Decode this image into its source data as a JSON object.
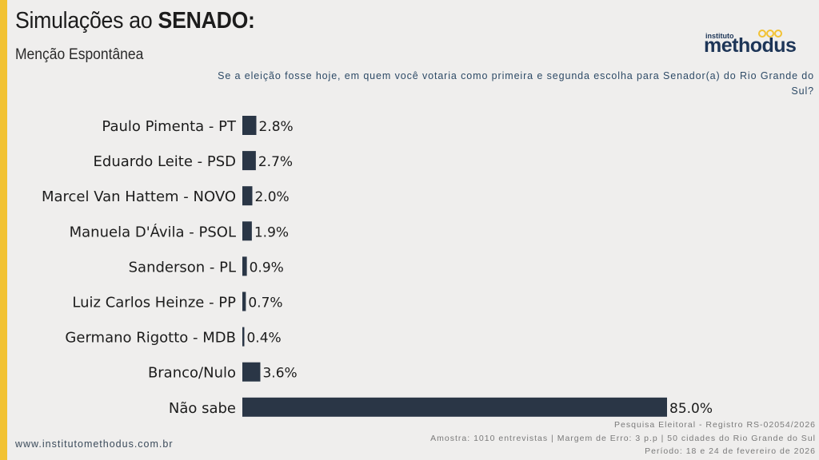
{
  "header": {
    "title_regular": "Simulações ao ",
    "title_bold": "SENADO:",
    "subtitle": "Menção Espontânea"
  },
  "logo": {
    "small": "instituto",
    "big": "methodus"
  },
  "question": "Se a eleição fosse hoje, em quem você votaria como primeira e segunda escolha para Senador(a) do Rio Grande do Sul?",
  "footer": {
    "url": "www.institutomethodus.com.br",
    "notes": [
      "Pesquisa Eleitoral - Registro RS-02054/2026",
      "Amostra: 1010 entrevistas | Margem de Erro: 3 p.p | 50 cidades do Rio Grande do Sul",
      "Período: 18 e 24 de fevereiro de 2026"
    ]
  },
  "colors": {
    "accent": "#f2c233",
    "bar": "#2a3646",
    "text": "#1c1c1c",
    "question": "#2d4a66"
  },
  "chart_data": {
    "type": "bar",
    "orientation": "horizontal",
    "title": "Simulações ao SENADO: Menção Espontânea",
    "xlabel": "",
    "ylabel": "",
    "xlim": [
      0,
      100
    ],
    "grid": false,
    "legend": "none",
    "value_suffix": "%",
    "categories": [
      "Paulo Pimenta - PT",
      "Eduardo Leite - PSD",
      "Marcel Van Hattem - NOVO",
      "Manuela D'Ávila - PSOL",
      "Sanderson - PL",
      "Luiz Carlos Heinze - PP",
      "Germano Rigotto - MDB",
      "Branco/Nulo",
      "Não sabe"
    ],
    "values": [
      2.8,
      2.7,
      2.0,
      1.9,
      0.9,
      0.7,
      0.4,
      3.6,
      85.0
    ],
    "labels": [
      "2.8%",
      "2.7%",
      "2.0%",
      "1.9%",
      "0.9%",
      "0.7%",
      "0.4%",
      "3.6%",
      "85.0%"
    ]
  }
}
